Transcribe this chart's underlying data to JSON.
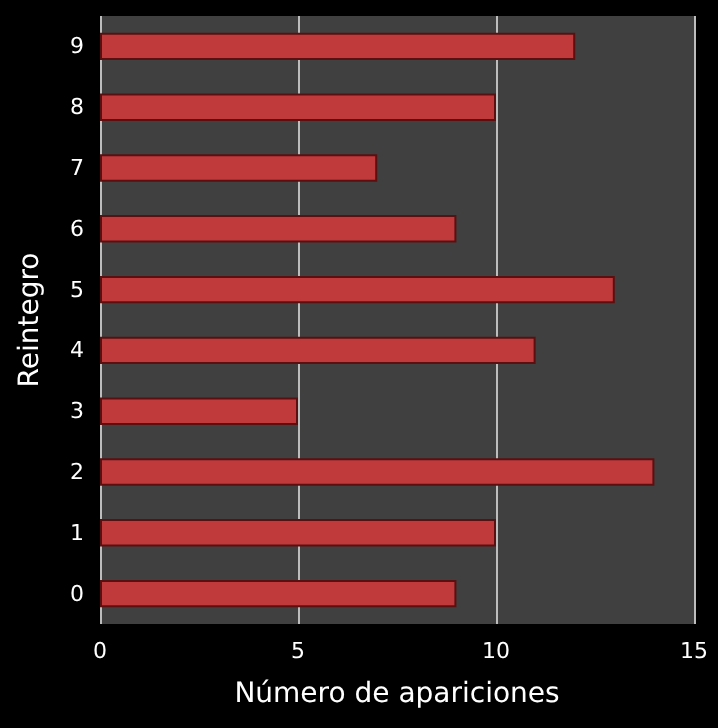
{
  "chart_data": {
    "type": "bar",
    "orientation": "horizontal",
    "xlabel": "Número de apariciones",
    "ylabel": "Reintegro",
    "categories": [
      "9",
      "8",
      "7",
      "6",
      "5",
      "4",
      "3",
      "2",
      "1",
      "0"
    ],
    "values": [
      12,
      10,
      7,
      9,
      13,
      11,
      5,
      14,
      10,
      9
    ],
    "color": "#c0393b",
    "xlim": [
      0,
      15
    ],
    "xticks": [
      0,
      5,
      10,
      15
    ],
    "grid": "x"
  }
}
